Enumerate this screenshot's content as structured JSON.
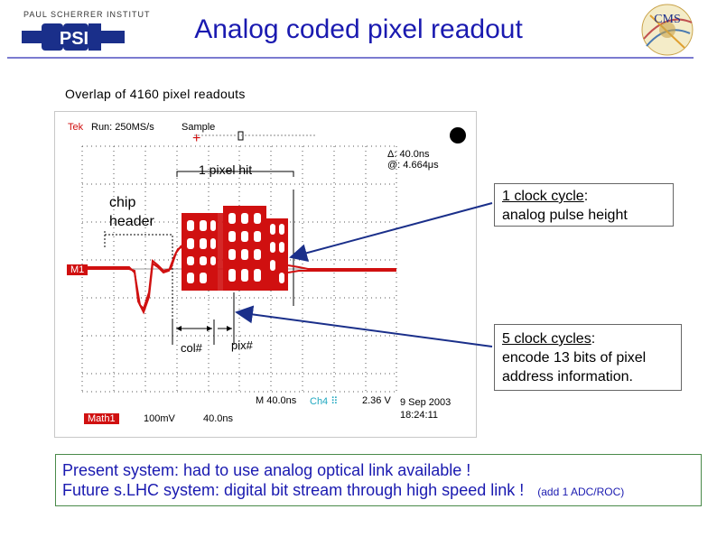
{
  "slide": {
    "title": "Analog coded pixel readout",
    "subtitle": "Overlap of 4160 pixel readouts"
  },
  "logos": {
    "left_text": "PAUL SCHERRER INSTITUT",
    "left_mark": "PSI",
    "right_mark": "CMS"
  },
  "scope": {
    "brand": "Tek",
    "run": "Run: 250MS/s",
    "mode": "Sample",
    "delta": "Δ: 40.0ns",
    "at": "@:   4.664μs",
    "channel": "M1",
    "timebase": "M 40.0ns",
    "trigger_ch": "Ch4",
    "trigger_level": "2.36 V",
    "date": "9 Sep 2003",
    "time": "18:24:11",
    "math": "Math1",
    "volt_div": "100mV",
    "time_div": "40.0ns",
    "colors": {
      "trace": "#d01010",
      "grid": "#444444",
      "trigger": "#20a8c0"
    }
  },
  "annotations": {
    "one_pixel_hit": "1 pixel hit",
    "chip_header_line1": "chip",
    "chip_header_line2": "header",
    "col": "col#",
    "pix": "pix#"
  },
  "callouts": {
    "clock1_underlined": "1 clock cycle",
    "clock1_rest": ":",
    "clock1_line2": "analog pulse height",
    "clock5_underlined": "5 clock cycles",
    "clock5_rest": ":",
    "clock5_line2": "encode 13 bits of pixel",
    "clock5_line3": "address information."
  },
  "footer": {
    "line1": "Present system:  had to use analog optical link available !",
    "line2": "Future s.LHC system:  digital bit stream through high speed link !",
    "note": "(add 1 ADC/ROC)"
  }
}
